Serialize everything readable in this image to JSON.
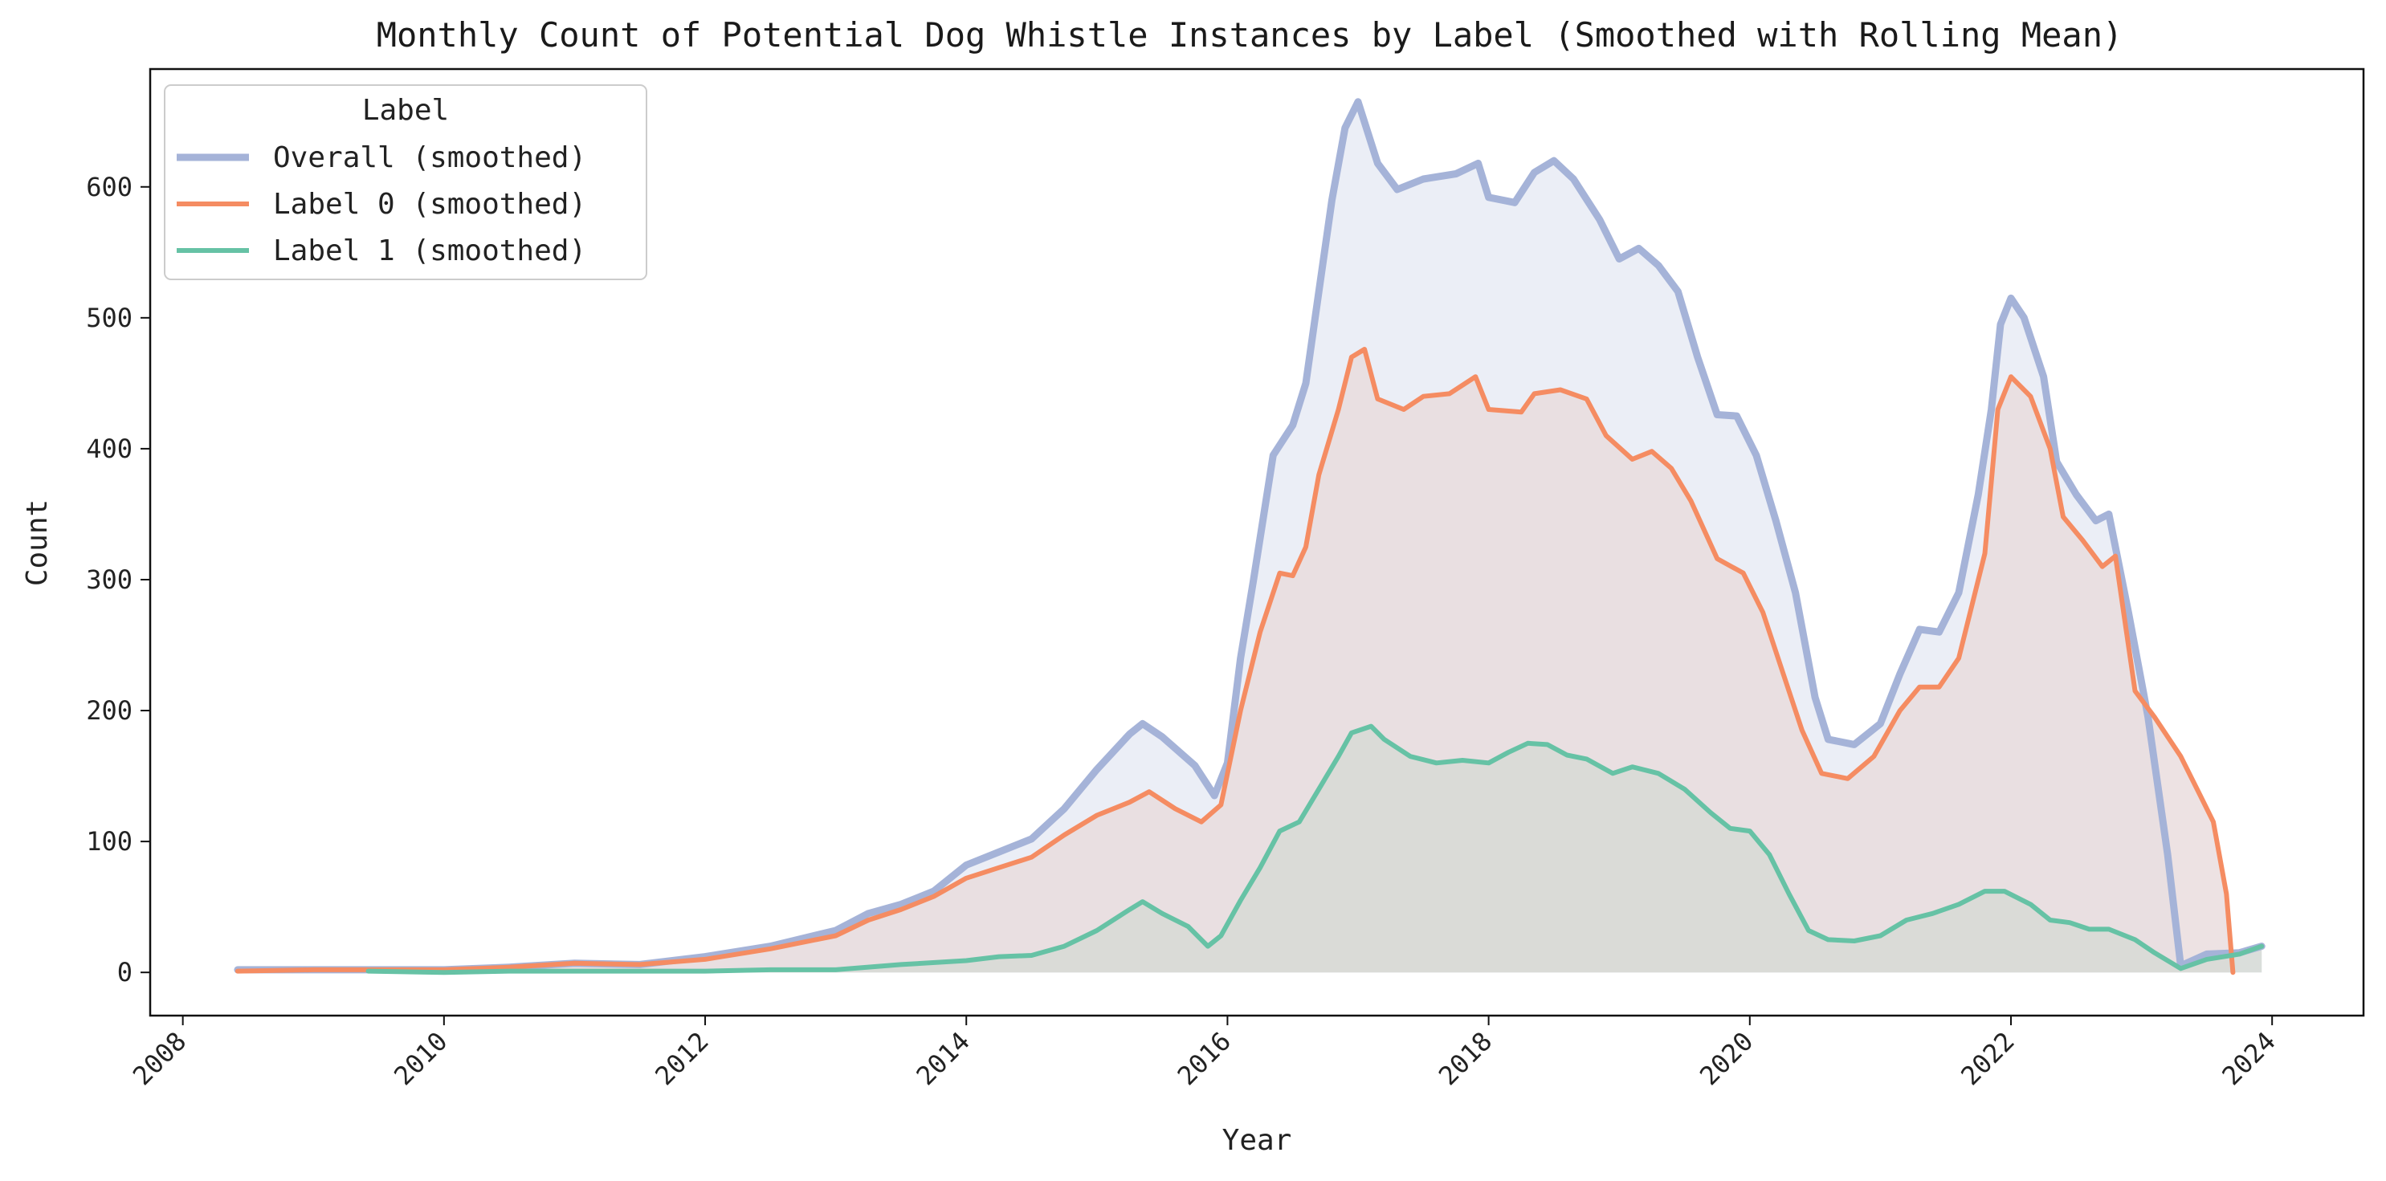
{
  "chart_data": {
    "type": "area",
    "title": "Monthly Count of Potential Dog Whistle Instances by Label (Smoothed with Rolling Mean)",
    "xlabel": "Year",
    "ylabel": "Count",
    "xlim": [
      2007.75,
      2024.7
    ],
    "ylim": [
      -33,
      690
    ],
    "xticks": [
      2008,
      2010,
      2012,
      2014,
      2016,
      2018,
      2020,
      2022,
      2024
    ],
    "yticks": [
      0,
      100,
      200,
      300,
      400,
      500,
      600
    ],
    "grid": false,
    "legend": {
      "title": "Label",
      "placement": "top-left"
    },
    "series": [
      {
        "name": "Overall (smoothed)",
        "color": "#a5b3d8",
        "fill": "#e6eaf4",
        "points": [
          [
            2008.42,
            2
          ],
          [
            2009.0,
            2
          ],
          [
            2009.5,
            2
          ],
          [
            2010.0,
            2
          ],
          [
            2010.5,
            4
          ],
          [
            2011.0,
            7
          ],
          [
            2011.5,
            6
          ],
          [
            2012.0,
            12
          ],
          [
            2012.5,
            20
          ],
          [
            2013.0,
            32
          ],
          [
            2013.25,
            45
          ],
          [
            2013.5,
            52
          ],
          [
            2013.75,
            62
          ],
          [
            2014.0,
            82
          ],
          [
            2014.25,
            92
          ],
          [
            2014.5,
            102
          ],
          [
            2014.75,
            125
          ],
          [
            2015.0,
            155
          ],
          [
            2015.25,
            182
          ],
          [
            2015.35,
            190
          ],
          [
            2015.5,
            180
          ],
          [
            2015.75,
            158
          ],
          [
            2015.9,
            135
          ],
          [
            2016.0,
            160
          ],
          [
            2016.1,
            240
          ],
          [
            2016.2,
            300
          ],
          [
            2016.35,
            395
          ],
          [
            2016.5,
            418
          ],
          [
            2016.6,
            450
          ],
          [
            2016.7,
            520
          ],
          [
            2016.8,
            590
          ],
          [
            2016.9,
            645
          ],
          [
            2017.0,
            665
          ],
          [
            2017.15,
            618
          ],
          [
            2017.3,
            598
          ],
          [
            2017.5,
            606
          ],
          [
            2017.75,
            610
          ],
          [
            2017.92,
            618
          ],
          [
            2018.0,
            592
          ],
          [
            2018.2,
            588
          ],
          [
            2018.35,
            611
          ],
          [
            2018.5,
            620
          ],
          [
            2018.65,
            606
          ],
          [
            2018.85,
            575
          ],
          [
            2019.0,
            545
          ],
          [
            2019.15,
            553
          ],
          [
            2019.3,
            540
          ],
          [
            2019.45,
            520
          ],
          [
            2019.6,
            470
          ],
          [
            2019.75,
            426
          ],
          [
            2019.9,
            425
          ],
          [
            2020.05,
            395
          ],
          [
            2020.2,
            345
          ],
          [
            2020.35,
            290
          ],
          [
            2020.5,
            210
          ],
          [
            2020.6,
            178
          ],
          [
            2020.8,
            174
          ],
          [
            2021.0,
            190
          ],
          [
            2021.15,
            228
          ],
          [
            2021.3,
            262
          ],
          [
            2021.45,
            260
          ],
          [
            2021.6,
            290
          ],
          [
            2021.75,
            365
          ],
          [
            2021.85,
            430
          ],
          [
            2021.92,
            495
          ],
          [
            2022.0,
            515
          ],
          [
            2022.1,
            500
          ],
          [
            2022.25,
            455
          ],
          [
            2022.35,
            390
          ],
          [
            2022.5,
            365
          ],
          [
            2022.65,
            345
          ],
          [
            2022.75,
            350
          ],
          [
            2022.9,
            275
          ],
          [
            2023.05,
            195
          ],
          [
            2023.2,
            90
          ],
          [
            2023.3,
            5
          ],
          [
            2023.5,
            14
          ],
          [
            2023.75,
            15
          ],
          [
            2023.92,
            20
          ]
        ]
      },
      {
        "name": "Label 0 (smoothed)",
        "color": "#f58c62",
        "fill": "#e9dbdc",
        "points": [
          [
            2008.42,
            1
          ],
          [
            2009.0,
            2
          ],
          [
            2009.5,
            2
          ],
          [
            2010.0,
            2
          ],
          [
            2010.5,
            4
          ],
          [
            2011.0,
            7
          ],
          [
            2011.5,
            6
          ],
          [
            2012.0,
            10
          ],
          [
            2012.5,
            18
          ],
          [
            2013.0,
            28
          ],
          [
            2013.25,
            40
          ],
          [
            2013.5,
            48
          ],
          [
            2013.75,
            58
          ],
          [
            2014.0,
            72
          ],
          [
            2014.25,
            80
          ],
          [
            2014.5,
            88
          ],
          [
            2014.75,
            105
          ],
          [
            2015.0,
            120
          ],
          [
            2015.25,
            130
          ],
          [
            2015.4,
            138
          ],
          [
            2015.6,
            125
          ],
          [
            2015.8,
            115
          ],
          [
            2015.95,
            128
          ],
          [
            2016.1,
            200
          ],
          [
            2016.25,
            260
          ],
          [
            2016.4,
            305
          ],
          [
            2016.5,
            303
          ],
          [
            2016.6,
            325
          ],
          [
            2016.7,
            380
          ],
          [
            2016.85,
            430
          ],
          [
            2016.95,
            470
          ],
          [
            2017.05,
            476
          ],
          [
            2017.15,
            438
          ],
          [
            2017.35,
            430
          ],
          [
            2017.5,
            440
          ],
          [
            2017.7,
            442
          ],
          [
            2017.9,
            455
          ],
          [
            2018.0,
            430
          ],
          [
            2018.25,
            428
          ],
          [
            2018.35,
            442
          ],
          [
            2018.55,
            445
          ],
          [
            2018.75,
            438
          ],
          [
            2018.9,
            410
          ],
          [
            2019.1,
            392
          ],
          [
            2019.25,
            398
          ],
          [
            2019.4,
            385
          ],
          [
            2019.55,
            360
          ],
          [
            2019.75,
            316
          ],
          [
            2019.95,
            305
          ],
          [
            2020.1,
            275
          ],
          [
            2020.25,
            230
          ],
          [
            2020.4,
            185
          ],
          [
            2020.55,
            152
          ],
          [
            2020.75,
            148
          ],
          [
            2020.95,
            165
          ],
          [
            2021.15,
            200
          ],
          [
            2021.3,
            218
          ],
          [
            2021.45,
            218
          ],
          [
            2021.6,
            240
          ],
          [
            2021.8,
            320
          ],
          [
            2021.9,
            430
          ],
          [
            2022.0,
            455
          ],
          [
            2022.15,
            440
          ],
          [
            2022.3,
            400
          ],
          [
            2022.4,
            348
          ],
          [
            2022.55,
            330
          ],
          [
            2022.7,
            310
          ],
          [
            2022.8,
            318
          ],
          [
            2022.95,
            215
          ],
          [
            2023.1,
            195
          ],
          [
            2023.3,
            165
          ],
          [
            2023.45,
            135
          ],
          [
            2023.55,
            115
          ],
          [
            2023.65,
            60
          ],
          [
            2023.7,
            0
          ]
        ]
      },
      {
        "name": "Label 1 (smoothed)",
        "color": "#66c2a5",
        "fill": "#d6d9d4",
        "points": [
          [
            2009.42,
            1
          ],
          [
            2010.0,
            0
          ],
          [
            2010.5,
            1
          ],
          [
            2011.0,
            1
          ],
          [
            2011.5,
            1
          ],
          [
            2012.0,
            1
          ],
          [
            2012.5,
            2
          ],
          [
            2013.0,
            2
          ],
          [
            2013.5,
            6
          ],
          [
            2014.0,
            9
          ],
          [
            2014.25,
            12
          ],
          [
            2014.5,
            13
          ],
          [
            2014.75,
            20
          ],
          [
            2015.0,
            32
          ],
          [
            2015.25,
            48
          ],
          [
            2015.35,
            54
          ],
          [
            2015.5,
            45
          ],
          [
            2015.7,
            35
          ],
          [
            2015.85,
            20
          ],
          [
            2015.95,
            28
          ],
          [
            2016.1,
            55
          ],
          [
            2016.25,
            80
          ],
          [
            2016.4,
            108
          ],
          [
            2016.55,
            115
          ],
          [
            2016.7,
            140
          ],
          [
            2016.85,
            165
          ],
          [
            2016.95,
            183
          ],
          [
            2017.1,
            188
          ],
          [
            2017.2,
            178
          ],
          [
            2017.4,
            165
          ],
          [
            2017.6,
            160
          ],
          [
            2017.8,
            162
          ],
          [
            2018.0,
            160
          ],
          [
            2018.15,
            168
          ],
          [
            2018.3,
            175
          ],
          [
            2018.45,
            174
          ],
          [
            2018.6,
            166
          ],
          [
            2018.75,
            163
          ],
          [
            2018.95,
            152
          ],
          [
            2019.1,
            157
          ],
          [
            2019.3,
            152
          ],
          [
            2019.5,
            140
          ],
          [
            2019.7,
            122
          ],
          [
            2019.85,
            110
          ],
          [
            2020.0,
            108
          ],
          [
            2020.15,
            90
          ],
          [
            2020.3,
            60
          ],
          [
            2020.45,
            32
          ],
          [
            2020.6,
            25
          ],
          [
            2020.8,
            24
          ],
          [
            2021.0,
            28
          ],
          [
            2021.2,
            40
          ],
          [
            2021.4,
            45
          ],
          [
            2021.6,
            52
          ],
          [
            2021.8,
            62
          ],
          [
            2021.95,
            62
          ],
          [
            2022.15,
            52
          ],
          [
            2022.3,
            40
          ],
          [
            2022.45,
            38
          ],
          [
            2022.6,
            33
          ],
          [
            2022.75,
            33
          ],
          [
            2022.95,
            25
          ],
          [
            2023.1,
            15
          ],
          [
            2023.3,
            3
          ],
          [
            2023.5,
            10
          ],
          [
            2023.75,
            14
          ],
          [
            2023.92,
            20
          ]
        ]
      }
    ]
  }
}
